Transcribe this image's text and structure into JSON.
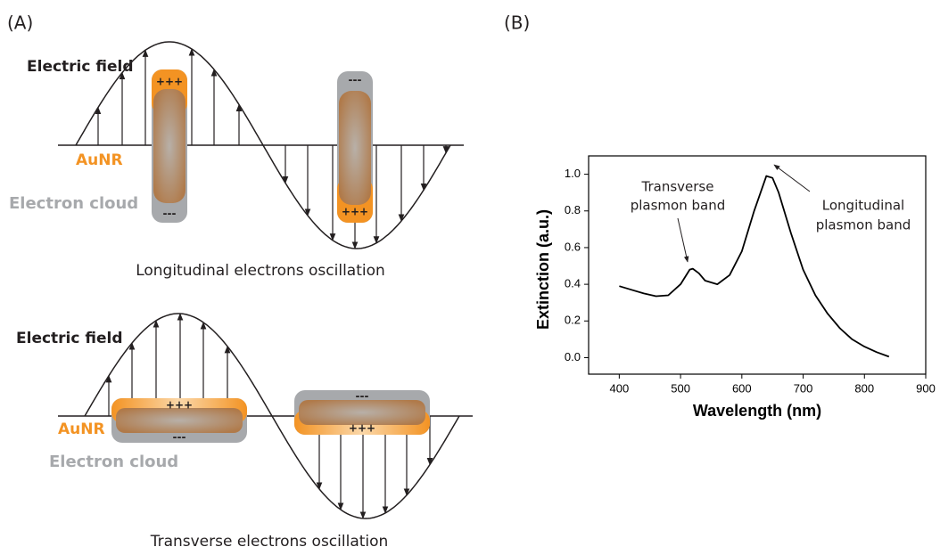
{
  "panels": {
    "a": "(A)",
    "b": "(B)"
  },
  "diagram": {
    "longitudinal": {
      "field_label": "Electric field",
      "rod_label": "AuNR",
      "cloud_label": "Electron cloud",
      "caption": "Longitudinal electrons oscillation",
      "plus": "+++",
      "minus": "---"
    },
    "transverse": {
      "field_label": "Electric field",
      "rod_label": "AuNR",
      "cloud_label": "Electron cloud",
      "caption": "Transverse electrons oscillation",
      "plus": "+++",
      "minus": "---"
    }
  },
  "chart_data": {
    "type": "line",
    "xlabel": "Wavelength (nm)",
    "ylabel": "Extinction (a.u.)",
    "color": "#000000",
    "x": [
      400,
      420,
      440,
      460,
      480,
      500,
      515,
      520,
      530,
      540,
      560,
      580,
      600,
      620,
      640,
      650,
      660,
      680,
      700,
      720,
      740,
      760,
      780,
      800,
      820,
      840
    ],
    "y": [
      0.39,
      0.37,
      0.35,
      0.335,
      0.34,
      0.4,
      0.48,
      0.485,
      0.46,
      0.42,
      0.4,
      0.45,
      0.58,
      0.8,
      0.99,
      0.98,
      0.9,
      0.68,
      0.48,
      0.34,
      0.24,
      0.16,
      0.1,
      0.06,
      0.03,
      0.005
    ],
    "xlim": [
      350,
      900
    ],
    "xticks": [
      400,
      500,
      600,
      700,
      800,
      900
    ],
    "ylim": [
      -0.09,
      1.1
    ],
    "yticks": [
      {
        "value": 0,
        "label": "0.0"
      },
      0.2,
      0.4,
      0.6,
      0.8,
      {
        "value": 1,
        "label": "1.0"
      }
    ],
    "annotations": [
      {
        "lines": [
          "Transverse",
          "plasmon band"
        ]
      },
      {
        "lines": [
          "Longitudinal",
          "plasmon band"
        ]
      }
    ]
  }
}
